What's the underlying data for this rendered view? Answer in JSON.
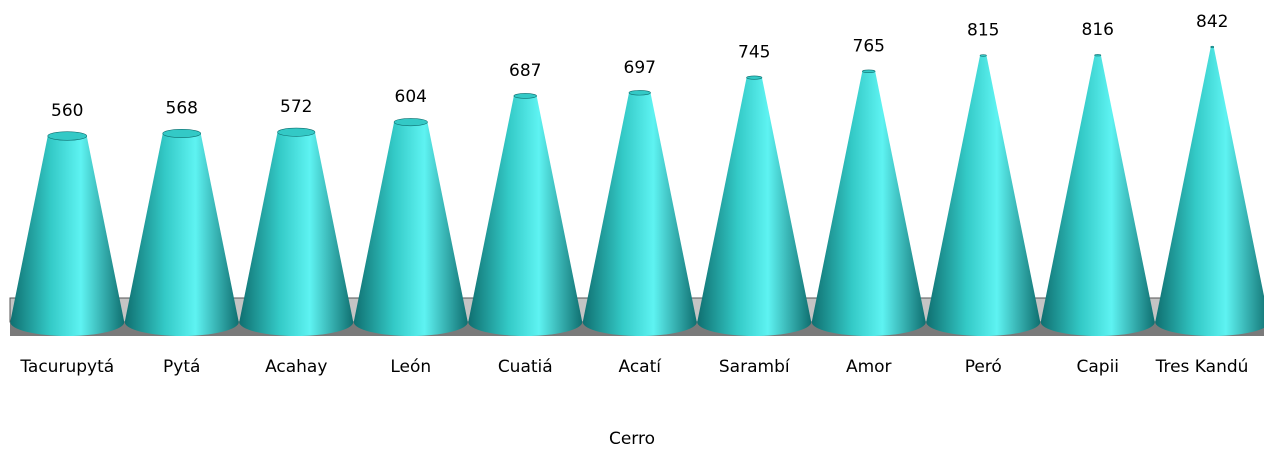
{
  "chart_data": {
    "type": "bar",
    "bar_shape": "cone",
    "categories": [
      "Tacurupytá",
      "Pytá",
      "Acahay",
      "León",
      "Cuatiá",
      "Acatí",
      "Sarambí",
      "Amor",
      "Peró",
      "Capii",
      "Tres Kandú"
    ],
    "values": [
      560,
      568,
      572,
      604,
      687,
      697,
      745,
      765,
      815,
      816,
      842
    ],
    "data_labels": [
      "560",
      "568",
      "572",
      "604",
      "687",
      "697",
      "745",
      "765",
      "815",
      "816",
      "842"
    ],
    "title": "",
    "xlabel": "Cerro",
    "ylabel": "",
    "ylim": [
      0,
      842
    ],
    "grid": false,
    "legend": "none",
    "colors": {
      "cone_light": "#5ef3f2",
      "cone_mid": "#33c9c6",
      "cone_dark": "#0f6f70",
      "floor_top": "#c4c4c4",
      "floor_side": "#7a7a7a"
    }
  }
}
